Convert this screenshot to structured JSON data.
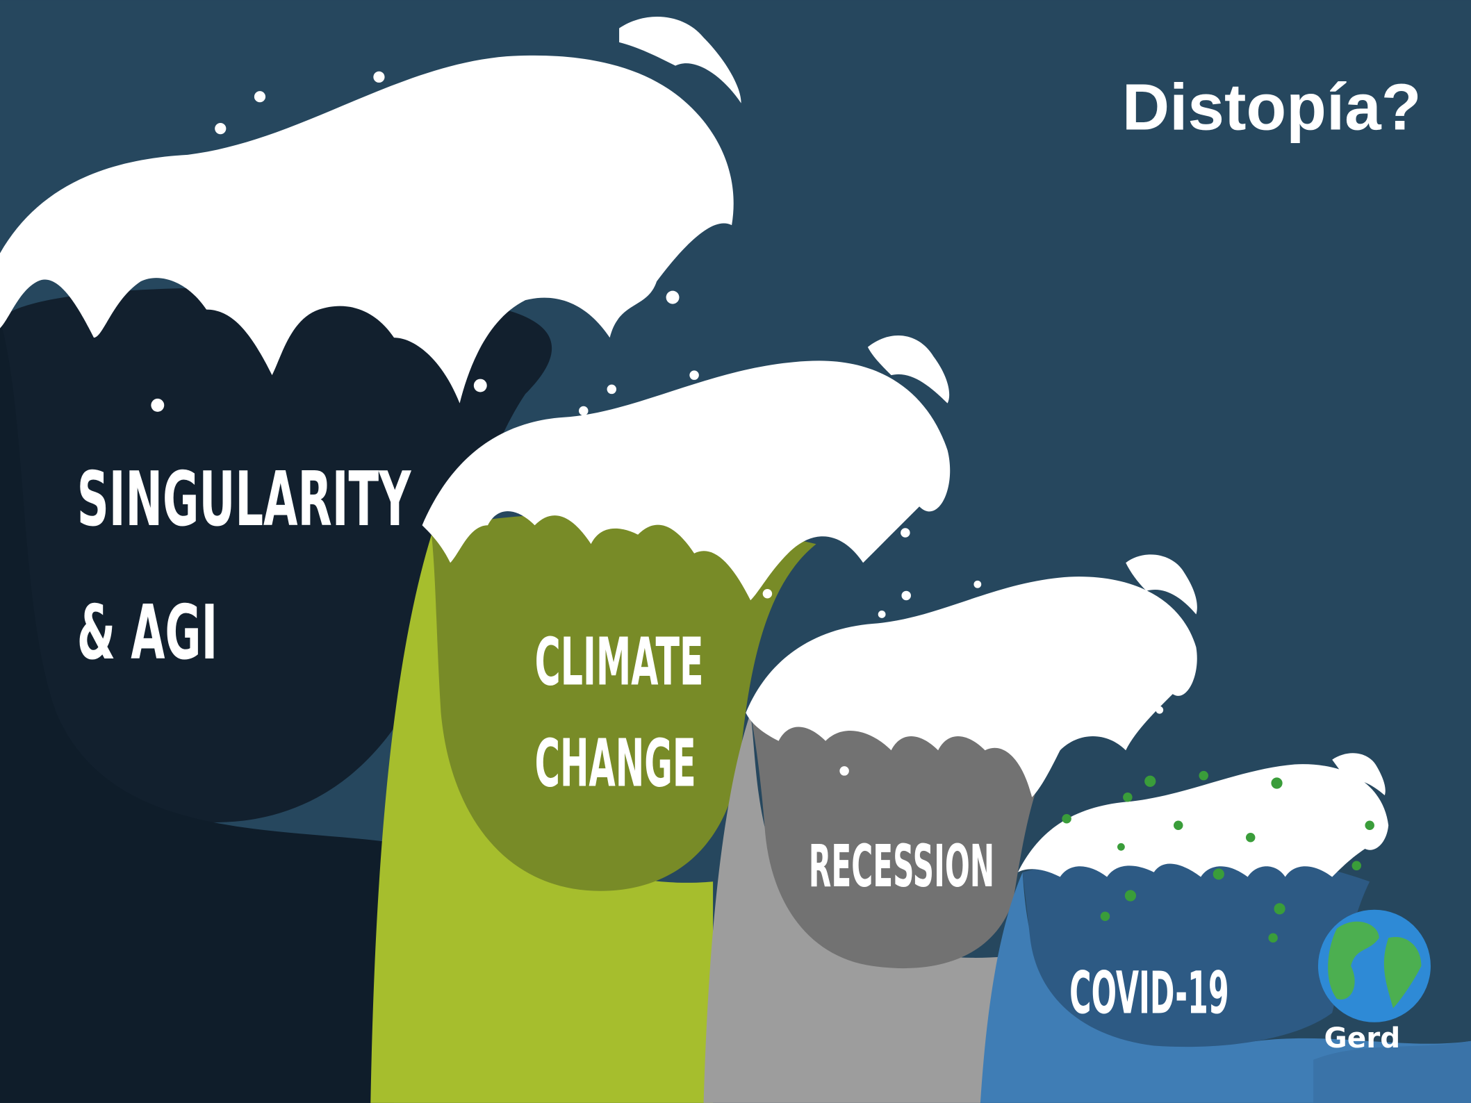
{
  "title": "Distopía?",
  "waves": [
    {
      "lines": [
        "SINGULARITY",
        "& AGI"
      ]
    },
    {
      "lines": [
        "CLIMATE",
        "CHANGE"
      ]
    },
    {
      "lines": [
        "RECESSION"
      ]
    },
    {
      "lines": [
        "COVID-19"
      ]
    }
  ],
  "logo": "Gerd"
}
